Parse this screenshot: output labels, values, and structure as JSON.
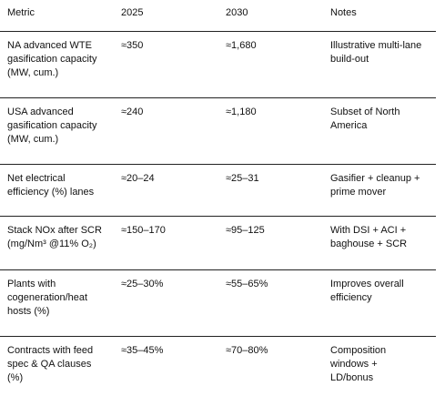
{
  "table": {
    "columns": [
      "Metric",
      "2025",
      "2030",
      "Notes"
    ],
    "rows": [
      {
        "metric": "NA advanced WTE\ngasification capacity\n(MW, cum.)",
        "y2025": "≈350",
        "y2030": "≈1,680",
        "notes": "Illustrative multi-lane\nbuild-out"
      },
      {
        "metric": "USA advanced\ngasification capacity\n(MW, cum.)",
        "y2025": "≈240",
        "y2030": "≈1,180",
        "notes": "Subset of North\nAmerica"
      },
      {
        "metric": "Net electrical\nefficiency (%)   lanes",
        "y2025": "≈20–24",
        "y2030": "≈25–31",
        "notes": "Gasifier + cleanup +\nprime mover"
      },
      {
        "metric": "Stack NOx after SCR\n(mg/Nm³ @11% O₂)",
        "y2025": "≈150–170",
        "y2030": "≈95–125",
        "notes": "With DSI + ACI +\nbaghouse + SCR"
      },
      {
        "metric": "Plants with\ncogeneration/heat\nhosts (%)",
        "y2025": "≈25–30%",
        "y2030": "≈55–65%",
        "notes": "Improves overall\nefficiency"
      },
      {
        "metric": "Contracts with feed\nspec & QA clauses\n(%)",
        "y2025": "≈35–45%",
        "y2030": "≈70–80%",
        "notes": "Composition\nwindows +\nLD/bonus"
      }
    ]
  }
}
